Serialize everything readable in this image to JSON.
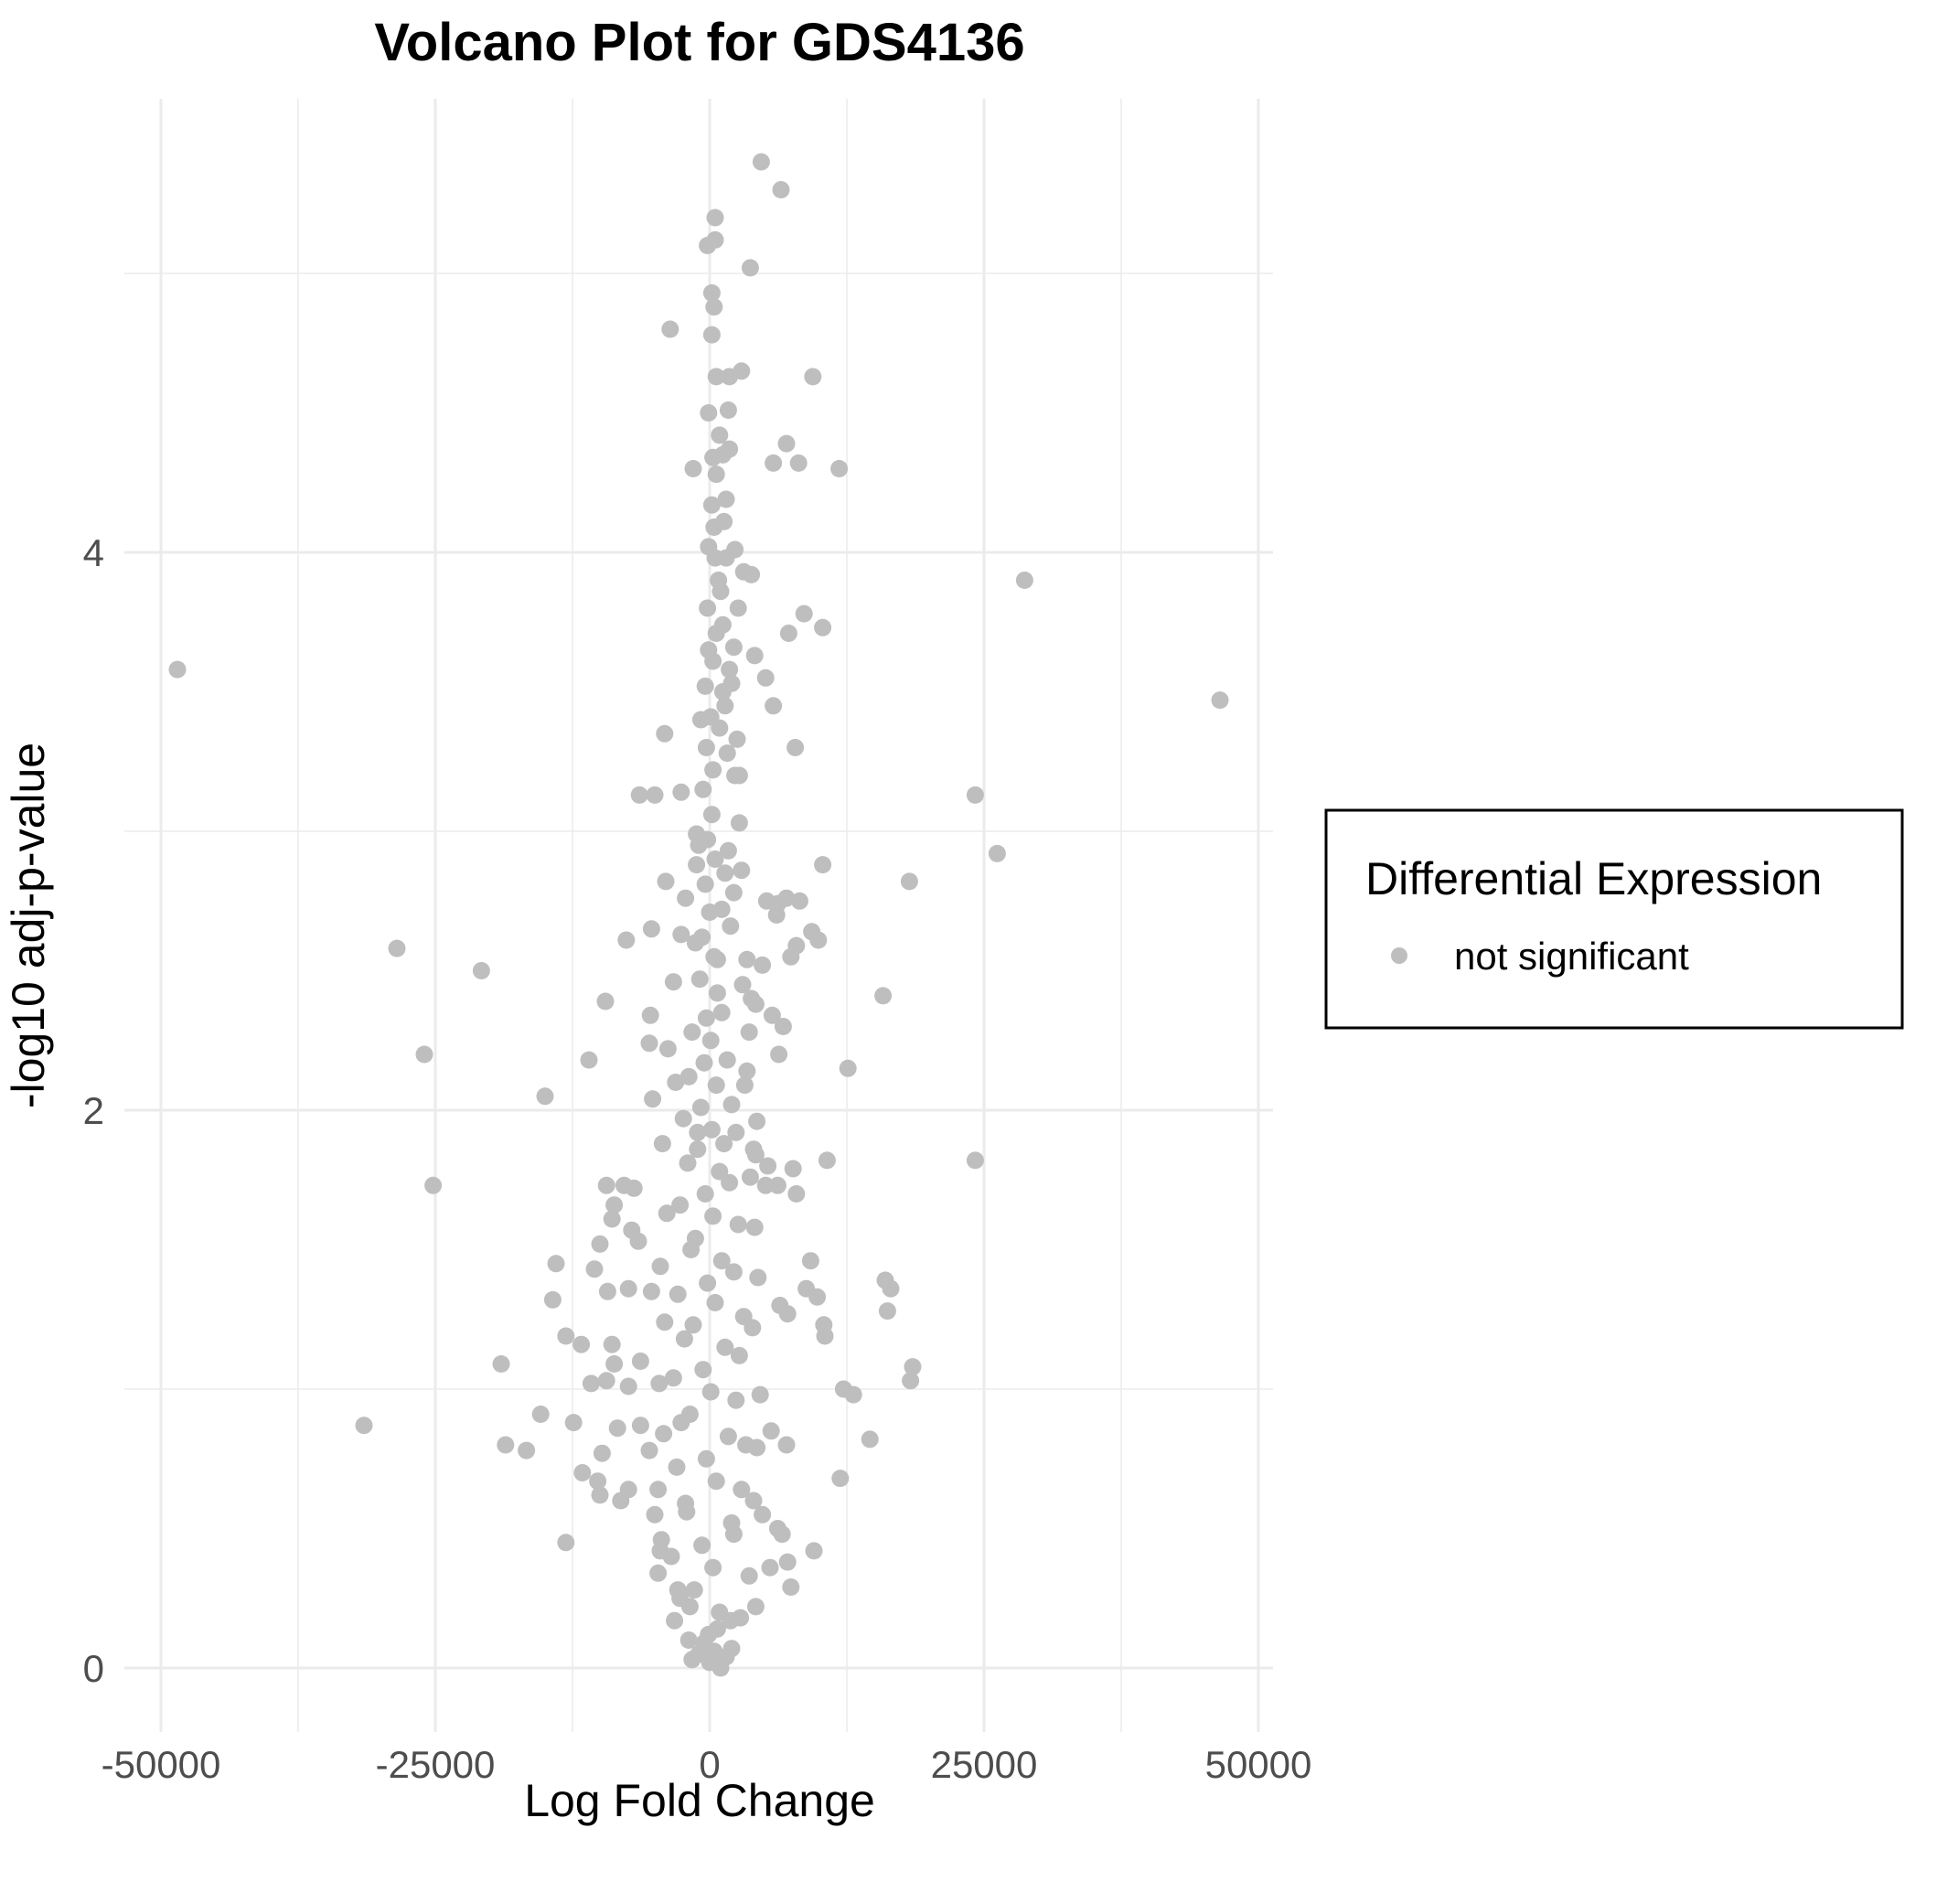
{
  "chart_data": {
    "type": "scatter",
    "title": "Volcano Plot for GDS4136",
    "xlabel": "Log Fold Change",
    "ylabel": "-log10 adj-p-value",
    "xlim": [
      -50000,
      50000
    ],
    "ylim": [
      0,
      5.5
    ],
    "x_ticks": [
      -50000,
      -25000,
      0,
      25000,
      50000
    ],
    "x_tick_labels": [
      "-50000",
      "-25000",
      "0",
      "25000",
      "50000"
    ],
    "y_ticks": [
      0,
      2,
      4
    ],
    "y_tick_labels": [
      "0",
      "2",
      "4"
    ],
    "grid": true,
    "legend": {
      "title": "Differential Expression",
      "placement": "right",
      "entries": [
        {
          "label": "not significant",
          "color": "#bebebe"
        }
      ]
    },
    "series": [
      {
        "name": "not significant",
        "color": "#bebebe",
        "points": [
          [
            -48500,
            3.58
          ],
          [
            46500,
            3.47
          ],
          [
            28700,
            3.9
          ],
          [
            24200,
            3.13
          ],
          [
            26200,
            2.92
          ],
          [
            18200,
            2.82
          ],
          [
            15800,
            2.41
          ],
          [
            24200,
            1.82
          ],
          [
            12600,
            2.15
          ],
          [
            10300,
            2.88
          ],
          [
            10300,
            3.73
          ],
          [
            8600,
            3.78
          ],
          [
            7200,
            3.71
          ],
          [
            7800,
            3.3
          ],
          [
            5800,
            3.45
          ],
          [
            5100,
            3.55
          ],
          [
            4100,
            3.63
          ],
          [
            4700,
            5.4
          ],
          [
            6500,
            5.3
          ],
          [
            3700,
            5.02
          ],
          [
            500,
            5.2
          ],
          [
            500,
            5.12
          ],
          [
            200,
            4.93
          ],
          [
            400,
            4.88
          ],
          [
            -3600,
            4.8
          ],
          [
            200,
            4.78
          ],
          [
            2900,
            4.65
          ],
          [
            9400,
            4.63
          ],
          [
            600,
            4.63
          ],
          [
            1800,
            4.63
          ],
          [
            1700,
            4.51
          ],
          [
            7000,
            4.39
          ],
          [
            1800,
            4.37
          ],
          [
            5800,
            4.32
          ],
          [
            8100,
            4.32
          ],
          [
            11800,
            4.3
          ],
          [
            -1500,
            4.3
          ],
          [
            600,
            4.28
          ],
          [
            1200,
            4.35
          ],
          [
            300,
            4.34
          ],
          [
            -4100,
            3.35
          ],
          [
            -6400,
            3.13
          ],
          [
            -5000,
            3.13
          ],
          [
            -2600,
            3.14
          ],
          [
            -1200,
            2.99
          ],
          [
            -1200,
            2.88
          ],
          [
            -4000,
            2.82
          ],
          [
            -2200,
            2.76
          ],
          [
            -5300,
            2.65
          ],
          [
            -7600,
            2.61
          ],
          [
            -2600,
            2.63
          ],
          [
            -28500,
            2.58
          ],
          [
            -20800,
            2.5
          ],
          [
            -9500,
            2.39
          ],
          [
            -5400,
            2.34
          ],
          [
            -5500,
            2.24
          ],
          [
            -11000,
            2.18
          ],
          [
            -26000,
            2.2
          ],
          [
            -15000,
            2.05
          ],
          [
            -5200,
            2.04
          ],
          [
            -25200,
            1.73
          ],
          [
            -9400,
            1.73
          ],
          [
            -7800,
            1.73
          ],
          [
            -6900,
            1.72
          ],
          [
            -8700,
            1.66
          ],
          [
            -8900,
            1.61
          ],
          [
            -7100,
            1.57
          ],
          [
            -6500,
            1.53
          ],
          [
            -10000,
            1.52
          ],
          [
            -14000,
            1.45
          ],
          [
            -10500,
            1.43
          ],
          [
            -9300,
            1.35
          ],
          [
            -7400,
            1.36
          ],
          [
            -5300,
            1.35
          ],
          [
            -14300,
            1.32
          ],
          [
            -13100,
            1.19
          ],
          [
            -11700,
            1.16
          ],
          [
            -8900,
            1.16
          ],
          [
            -8700,
            1.09
          ],
          [
            -6300,
            1.1
          ],
          [
            -19000,
            1.09
          ],
          [
            -10800,
            1.02
          ],
          [
            -9400,
            1.03
          ],
          [
            -7400,
            1.01
          ],
          [
            -31500,
            0.87
          ],
          [
            -15400,
            0.91
          ],
          [
            -12400,
            0.88
          ],
          [
            -8400,
            0.86
          ],
          [
            -6300,
            0.87
          ],
          [
            -18600,
            0.8
          ],
          [
            -16700,
            0.78
          ],
          [
            -9800,
            0.77
          ],
          [
            -5500,
            0.78
          ],
          [
            -11600,
            0.7
          ],
          [
            -10200,
            0.67
          ],
          [
            -7400,
            0.64
          ],
          [
            -10000,
            0.62
          ],
          [
            -8100,
            0.6
          ],
          [
            -13100,
            0.45
          ],
          [
            -5000,
            0.55
          ],
          [
            -4500,
            0.42
          ],
          [
            -4700,
            0.34
          ],
          [
            -2900,
            0.28
          ],
          [
            -3200,
            0.17
          ],
          [
            -1800,
            0.22
          ],
          [
            7600,
            1.79
          ],
          [
            6200,
            1.73
          ],
          [
            5300,
            1.8
          ],
          [
            4200,
            1.84
          ],
          [
            3700,
            1.76
          ],
          [
            10700,
            1.82
          ],
          [
            5100,
            1.73
          ],
          [
            7900,
            1.7
          ],
          [
            9200,
            1.46
          ],
          [
            8800,
            1.36
          ],
          [
            9800,
            1.33
          ],
          [
            6400,
            1.3
          ],
          [
            7100,
            1.27
          ],
          [
            16000,
            1.39
          ],
          [
            16500,
            1.36
          ],
          [
            16200,
            1.28
          ],
          [
            10400,
            1.23
          ],
          [
            10500,
            1.19
          ],
          [
            12200,
            1.0
          ],
          [
            13100,
            0.98
          ],
          [
            18500,
            1.08
          ],
          [
            18300,
            1.03
          ],
          [
            14600,
            0.82
          ],
          [
            7000,
            0.8
          ],
          [
            5600,
            0.85
          ],
          [
            11900,
            0.68
          ],
          [
            4800,
            0.55
          ],
          [
            6200,
            0.5
          ],
          [
            6600,
            0.48
          ],
          [
            9500,
            0.42
          ],
          [
            7100,
            0.38
          ],
          [
            5500,
            0.36
          ],
          [
            7400,
            0.29
          ],
          [
            4200,
            0.22
          ],
          [
            2800,
            0.18
          ],
          [
            4200,
            2.38
          ],
          [
            5700,
            2.34
          ],
          [
            6700,
            2.3
          ],
          [
            6300,
            2.2
          ],
          [
            3400,
            2.14
          ],
          [
            3200,
            2.09
          ],
          [
            4300,
            1.96
          ],
          [
            3800,
            2.4
          ],
          [
            4800,
            2.52
          ],
          [
            6100,
            2.7
          ],
          [
            7000,
            2.76
          ],
          [
            5200,
            2.75
          ],
          [
            6200,
            2.74
          ],
          [
            8200,
            2.75
          ],
          [
            7900,
            2.59
          ],
          [
            9300,
            2.64
          ],
          [
            9900,
            2.61
          ],
          [
            7400,
            2.55
          ],
          [
            2300,
            3.2
          ],
          [
            2700,
            3.03
          ],
          [
            1500,
            4.19
          ],
          [
            1300,
            4.11
          ],
          [
            2300,
            4.01
          ],
          [
            3800,
            3.92
          ],
          [
            1000,
            3.86
          ],
          [
            2600,
            3.8
          ],
          [
            3100,
            3.93
          ],
          [
            1200,
            3.74
          ],
          [
            2200,
            3.66
          ],
          [
            2000,
            3.53
          ],
          [
            1400,
            3.45
          ],
          [
            2500,
            3.33
          ],
          [
            2700,
            3.2
          ],
          [
            1700,
            2.93
          ],
          [
            2900,
            2.86
          ],
          [
            2200,
            2.78
          ],
          [
            1100,
            2.72
          ],
          [
            1900,
            2.66
          ],
          [
            700,
            2.54
          ],
          [
            3400,
            2.54
          ],
          [
            200,
            4.17
          ],
          [
            400,
            4.09
          ],
          [
            -100,
            4.02
          ],
          [
            500,
            3.98
          ],
          [
            800,
            3.9
          ],
          [
            -200,
            3.8
          ],
          [
            600,
            3.71
          ],
          [
            300,
            3.61
          ],
          [
            -400,
            3.52
          ],
          [
            100,
            3.41
          ],
          [
            -300,
            3.3
          ],
          [
            300,
            3.22
          ],
          [
            -600,
            3.15
          ],
          [
            200,
            3.06
          ],
          [
            -200,
            2.97
          ],
          [
            500,
            2.9
          ],
          [
            -400,
            2.81
          ],
          [
            0,
            2.71
          ],
          [
            -700,
            2.62
          ],
          [
            400,
            2.55
          ],
          [
            -900,
            2.47
          ],
          [
            700,
            2.42
          ],
          [
            -300,
            2.33
          ],
          [
            100,
            2.25
          ],
          [
            -500,
            2.17
          ],
          [
            600,
            2.09
          ],
          [
            -800,
            2.01
          ],
          [
            200,
            1.93
          ],
          [
            -1100,
            1.86
          ],
          [
            900,
            1.78
          ],
          [
            -400,
            1.7
          ],
          [
            300,
            1.62
          ],
          [
            -1300,
            1.54
          ],
          [
            1100,
            1.46
          ],
          [
            -200,
            1.38
          ],
          [
            500,
            1.31
          ],
          [
            -1500,
            1.23
          ],
          [
            1400,
            1.15
          ],
          [
            -600,
            1.07
          ],
          [
            100,
            0.99
          ],
          [
            -1800,
            0.91
          ],
          [
            1700,
            0.83
          ],
          [
            -300,
            0.75
          ],
          [
            600,
            0.67
          ],
          [
            -2200,
            0.59
          ],
          [
            2000,
            0.52
          ],
          [
            -700,
            0.44
          ],
          [
            300,
            0.36
          ],
          [
            -1400,
            0.28
          ],
          [
            900,
            0.2
          ],
          [
            -100,
            0.12
          ],
          [
            400,
            0.06
          ],
          [
            0,
            0.02
          ],
          [
            -500,
            0.09
          ],
          [
            700,
            0.14
          ],
          [
            -2400,
            1.97
          ],
          [
            2400,
            1.92
          ],
          [
            -2000,
            1.81
          ],
          [
            1800,
            1.74
          ],
          [
            -2700,
            1.66
          ],
          [
            2600,
            1.59
          ],
          [
            -1700,
            1.5
          ],
          [
            2200,
            1.42
          ],
          [
            -2900,
            1.34
          ],
          [
            3100,
            1.26
          ],
          [
            -2300,
            1.18
          ],
          [
            2700,
            1.12
          ],
          [
            -3300,
            1.04
          ],
          [
            2400,
            0.96
          ],
          [
            -2600,
            0.88
          ],
          [
            3300,
            0.8
          ],
          [
            -3000,
            0.72
          ],
          [
            2900,
            0.64
          ],
          [
            -2100,
            0.56
          ],
          [
            2200,
            0.48
          ],
          [
            -3500,
            0.4
          ],
          [
            3600,
            0.33
          ],
          [
            -2700,
            0.25
          ],
          [
            1900,
            0.17
          ],
          [
            -1900,
            0.1
          ],
          [
            -3300,
            2.46
          ],
          [
            3000,
            2.45
          ],
          [
            -3800,
            2.22
          ],
          [
            3600,
            2.28
          ],
          [
            -3100,
            2.1
          ],
          [
            -4300,
            1.88
          ],
          [
            4000,
            1.86
          ],
          [
            -3900,
            1.63
          ],
          [
            4100,
            1.58
          ],
          [
            -4500,
            1.44
          ],
          [
            4400,
            1.4
          ],
          [
            -4100,
            1.24
          ],
          [
            3900,
            1.22
          ],
          [
            -4600,
            1.02
          ],
          [
            4600,
            0.98
          ],
          [
            -4200,
            0.84
          ],
          [
            4300,
            0.79
          ],
          [
            -4700,
            0.64
          ],
          [
            4000,
            0.6
          ],
          [
            -4400,
            0.46
          ],
          [
            1000,
            0.0
          ],
          [
            -1000,
            0.05
          ],
          [
            1500,
            0.04
          ],
          [
            -1600,
            0.03
          ],
          [
            2000,
            0.07
          ],
          [
            -200,
            5.1
          ],
          [
            -100,
            4.5
          ],
          [
            900,
            4.42
          ],
          [
            1500,
            3.98
          ],
          [
            -100,
            3.65
          ],
          [
            1800,
            3.58
          ],
          [
            1200,
            3.5
          ],
          [
            -800,
            3.4
          ],
          [
            900,
            3.37
          ],
          [
            1600,
            3.28
          ],
          [
            -1000,
            2.95
          ],
          [
            1400,
            2.85
          ],
          [
            -1300,
            2.6
          ],
          [
            1100,
            2.35
          ],
          [
            -1600,
            2.28
          ],
          [
            1600,
            2.18
          ],
          [
            -1900,
            2.12
          ],
          [
            2000,
            2.02
          ],
          [
            -1100,
            1.92
          ],
          [
            1300,
            1.88
          ]
        ]
      }
    ]
  }
}
